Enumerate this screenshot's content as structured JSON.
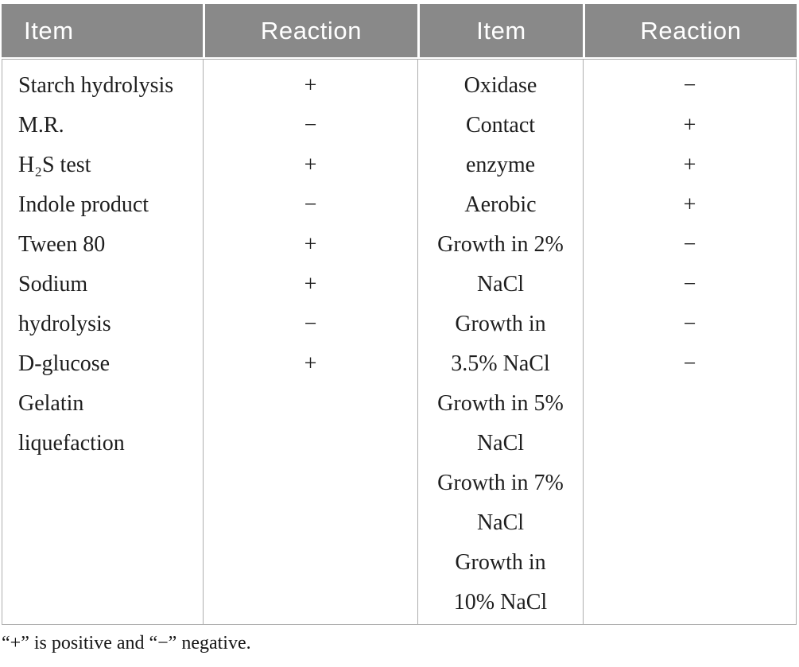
{
  "header": {
    "col1": "Item",
    "col2": "Reaction",
    "col3": "Item",
    "col4": "Reaction"
  },
  "table": {
    "left_items": [
      "Starch hydrolysis",
      "M.R.",
      "H₂S test",
      "Indole product",
      "Tween 80",
      "Sodium",
      "hydrolysis",
      "D-glucose",
      "Gelatin",
      "liquefaction"
    ],
    "left_reactions": [
      "+",
      "−",
      "+",
      "−",
      "+",
      "+",
      "−",
      "+"
    ],
    "right_items": [
      "Oxidase",
      "Contact",
      "enzyme",
      "Aerobic",
      "Growth in 2%",
      "NaCl",
      "Growth in",
      "3.5% NaCl",
      "Growth in 5%",
      "NaCl",
      "Growth in 7%",
      "NaCl",
      "Growth in",
      "10% NaCl"
    ],
    "right_reactions": [
      "−",
      "+",
      "+",
      "+",
      "−",
      "−",
      "−",
      "−"
    ]
  },
  "colors": {
    "header_bg": "#898989",
    "border": "#aeaeae",
    "body_text": "#1e1e1e"
  },
  "footnote": "“+” is positive and “−” negative."
}
